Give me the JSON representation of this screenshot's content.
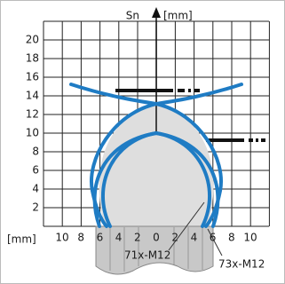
{
  "y_axis": {
    "title": "Sn",
    "unit": "[mm]",
    "tick_labels": [
      "20",
      "18",
      "16",
      "14",
      "12",
      "10",
      "8",
      "6",
      "4",
      "2"
    ]
  },
  "x_axis": {
    "unit": "[mm]",
    "tick_labels": [
      "10",
      "8",
      "6",
      "4",
      "2",
      "0",
      "2",
      "4",
      "6",
      "8",
      "10"
    ]
  },
  "sensors": [
    "71x-M12",
    "73x-M12"
  ]
}
